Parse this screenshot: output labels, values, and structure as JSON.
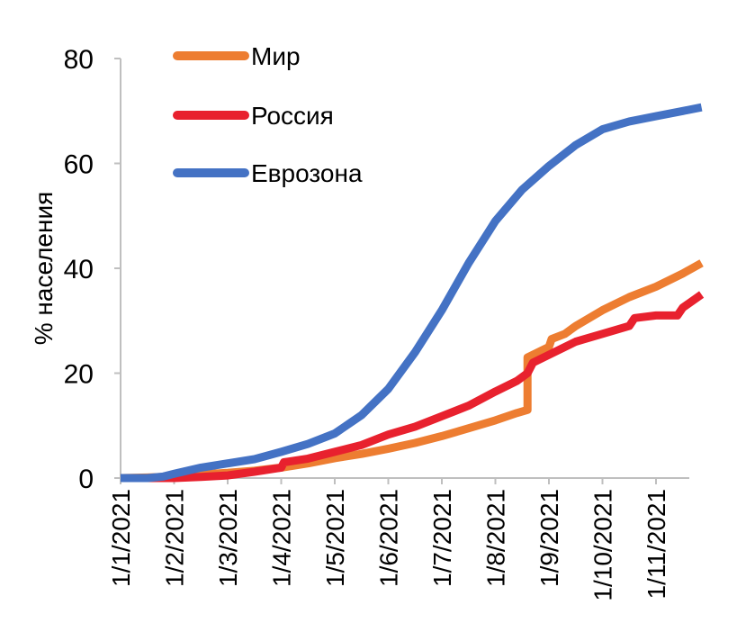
{
  "chart_data": {
    "type": "line",
    "ylabel": "% населения",
    "ylim": [
      0,
      80
    ],
    "yticks": [
      "0",
      "20",
      "40",
      "60",
      "80"
    ],
    "x_labels": [
      "1/1/2021",
      "1/2/2021",
      "1/3/2021",
      "1/4/2021",
      "1/5/2021",
      "1/6/2021",
      "1/7/2021",
      "1/8/2021",
      "1/9/2021",
      "1/10/2021",
      "1/11/2021"
    ],
    "x_unit": "month index (0 = 1/1/2021)",
    "legend_position": "top-left",
    "series": [
      {
        "name": "Мир",
        "color": "#ED7D31",
        "points": [
          [
            0,
            0
          ],
          [
            0.5,
            0.1
          ],
          [
            1,
            0.3
          ],
          [
            1.5,
            0.7
          ],
          [
            2,
            1.0
          ],
          [
            2.5,
            1.4
          ],
          [
            3,
            2.0
          ],
          [
            3.5,
            2.8
          ],
          [
            4,
            3.8
          ],
          [
            4.5,
            4.6
          ],
          [
            5,
            5.6
          ],
          [
            5.5,
            6.7
          ],
          [
            6,
            8.0
          ],
          [
            6.5,
            9.5
          ],
          [
            7,
            11.0
          ],
          [
            7.4,
            12.4
          ],
          [
            7.6,
            13.0
          ],
          [
            7.6,
            23.0
          ],
          [
            7.9,
            24.5
          ],
          [
            8.0,
            25.0
          ],
          [
            8.05,
            26.5
          ],
          [
            8.3,
            27.5
          ],
          [
            8.5,
            29.0
          ],
          [
            9,
            32.0
          ],
          [
            9.5,
            34.5
          ],
          [
            10,
            36.5
          ],
          [
            10.5,
            39.0
          ],
          [
            10.85,
            41.0
          ]
        ]
      },
      {
        "name": "Россия",
        "color": "#E8212E",
        "points": [
          [
            0,
            0
          ],
          [
            1,
            0
          ],
          [
            1.5,
            0.2
          ],
          [
            2,
            0.5
          ],
          [
            2.5,
            1.2
          ],
          [
            3,
            2.0
          ],
          [
            3.05,
            3.0
          ],
          [
            3.5,
            3.7
          ],
          [
            4,
            5.0
          ],
          [
            4.5,
            6.3
          ],
          [
            5,
            8.3
          ],
          [
            5.5,
            9.8
          ],
          [
            6,
            11.8
          ],
          [
            6.5,
            13.8
          ],
          [
            7,
            16.5
          ],
          [
            7.4,
            18.5
          ],
          [
            7.6,
            20.0
          ],
          [
            7.7,
            22.0
          ],
          [
            8,
            23.5
          ],
          [
            8.5,
            26.0
          ],
          [
            9,
            27.5
          ],
          [
            9.5,
            29.0
          ],
          [
            9.6,
            30.5
          ],
          [
            10,
            31.0
          ],
          [
            10.4,
            31.0
          ],
          [
            10.5,
            32.5
          ],
          [
            10.85,
            35.0
          ]
        ]
      },
      {
        "name": "Еврозона",
        "color": "#4472C4",
        "points": [
          [
            0,
            0
          ],
          [
            0.5,
            0
          ],
          [
            0.8,
            0.3
          ],
          [
            1,
            0.8
          ],
          [
            1.5,
            2.0
          ],
          [
            2,
            2.8
          ],
          [
            2.5,
            3.6
          ],
          [
            3,
            5.0
          ],
          [
            3.5,
            6.5
          ],
          [
            4,
            8.5
          ],
          [
            4.5,
            12.0
          ],
          [
            5,
            17.0
          ],
          [
            5.5,
            24.0
          ],
          [
            6,
            32.0
          ],
          [
            6.5,
            41.0
          ],
          [
            7,
            49.0
          ],
          [
            7.5,
            55.0
          ],
          [
            8,
            59.5
          ],
          [
            8.5,
            63.5
          ],
          [
            9,
            66.5
          ],
          [
            9.5,
            68.0
          ],
          [
            10,
            69.0
          ],
          [
            10.5,
            70.0
          ],
          [
            10.85,
            70.7
          ]
        ]
      }
    ]
  }
}
